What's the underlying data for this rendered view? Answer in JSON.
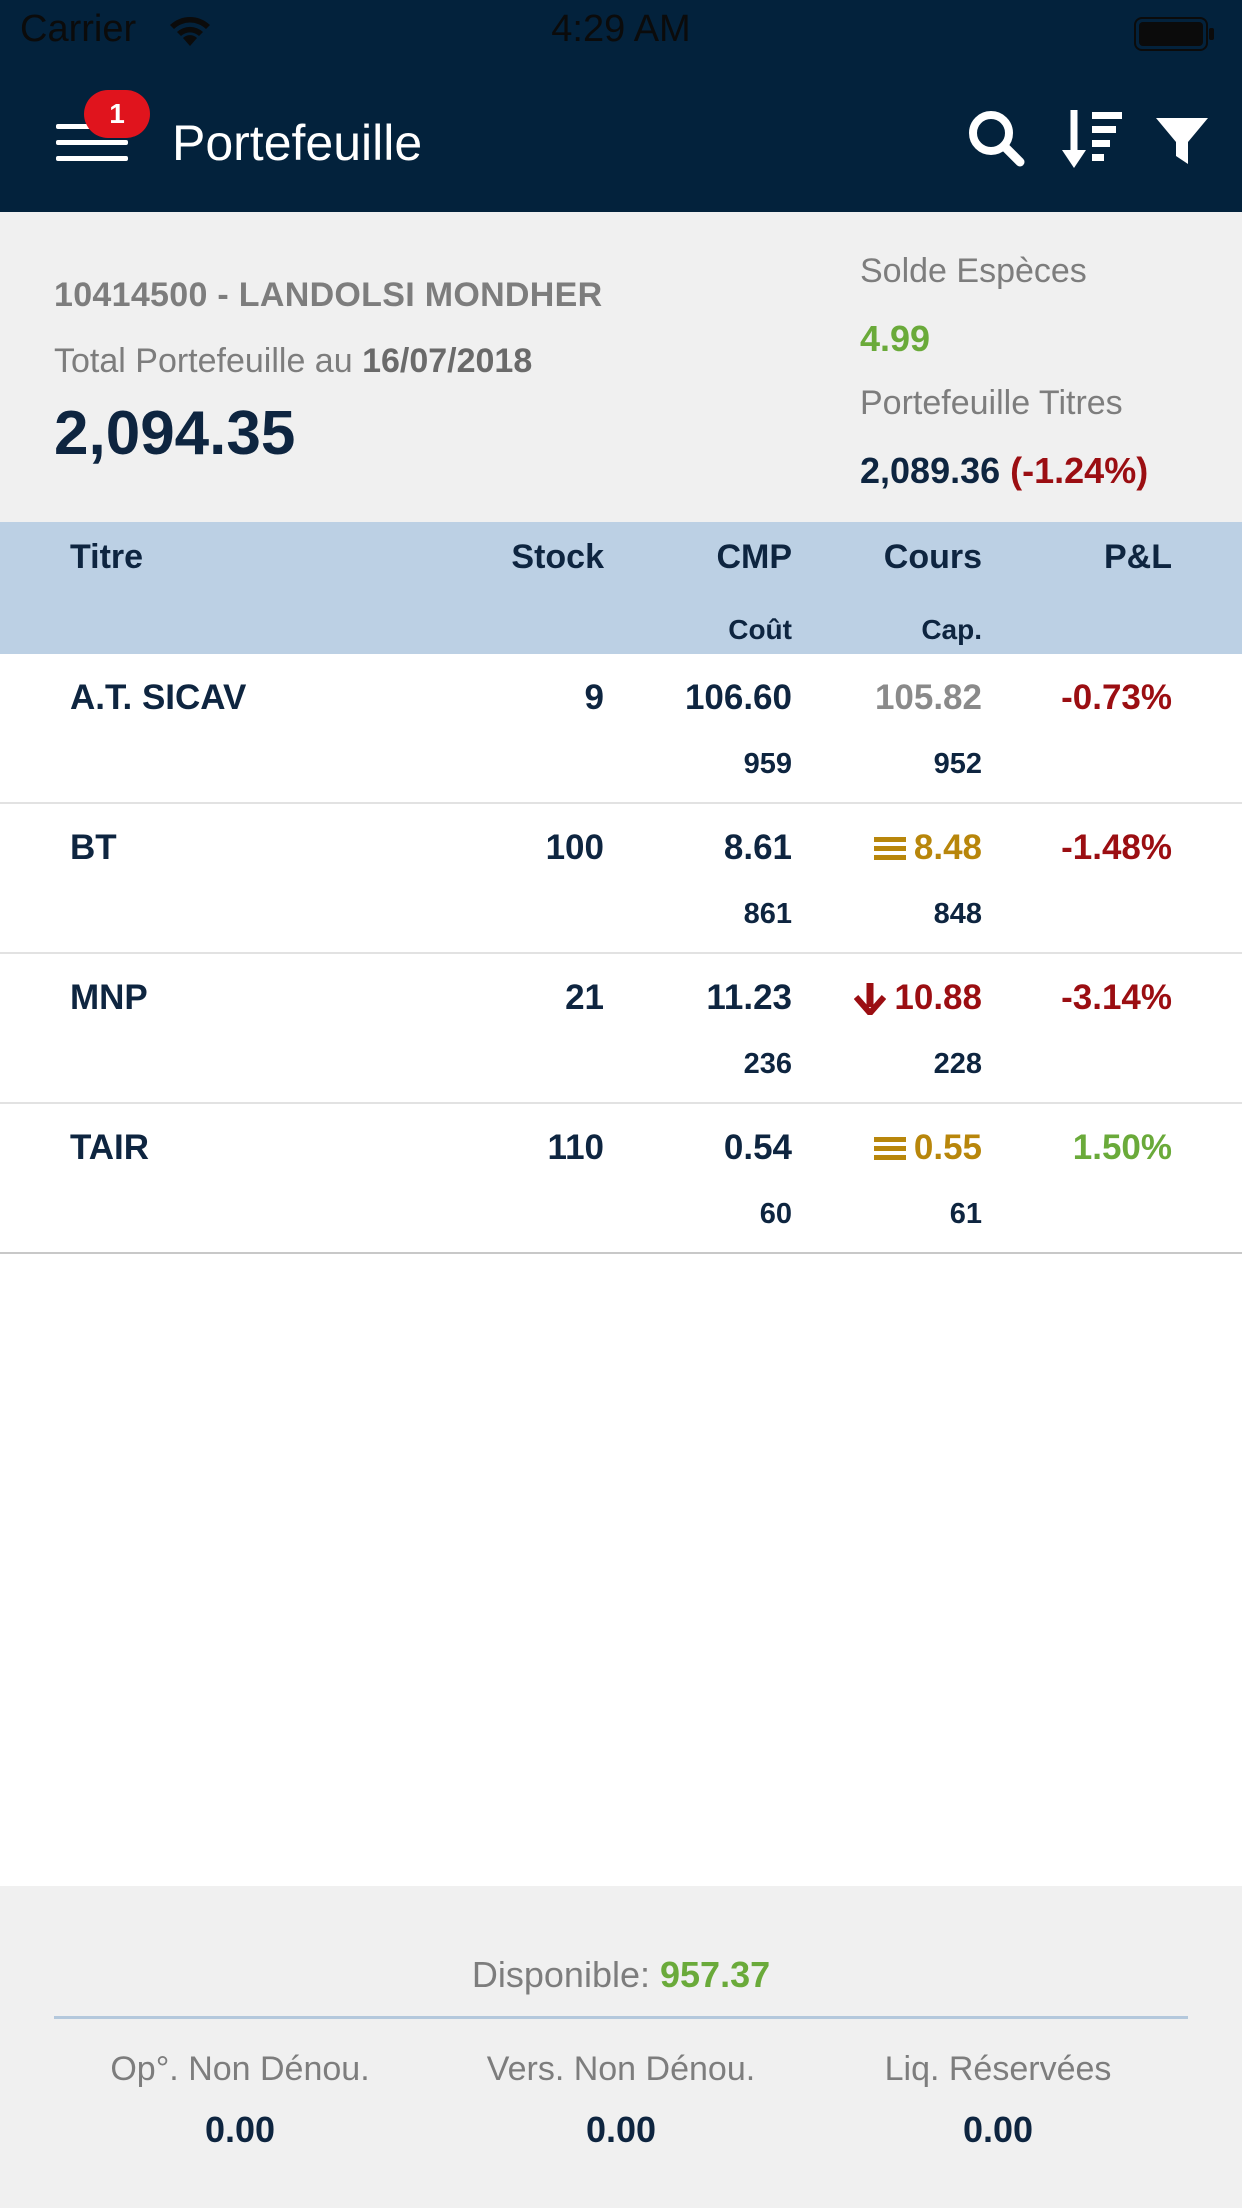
{
  "status_bar": {
    "carrier": "Carrier",
    "time": "4:29 AM"
  },
  "nav": {
    "title": "Portefeuille",
    "badge_count": "1",
    "icons": [
      "menu-icon",
      "search-icon",
      "sort-icon",
      "filter-icon"
    ]
  },
  "summary": {
    "account": "10414500 - LANDOLSI MONDHER",
    "total_label": "Total Portefeuille au ",
    "total_date": "16/07/2018",
    "total_value": "2,094.35",
    "solde_label": "Solde Espèces",
    "solde_value": "4.99",
    "titres_label": "Portefeuille Titres",
    "titres_value": "2,089.36",
    "titres_pct": "(-1.24%)"
  },
  "table": {
    "headers": {
      "titre": "Titre",
      "stock": "Stock",
      "cmp": "CMP",
      "cmp_sub": "Coût",
      "cours": "Cours",
      "cours_sub": "Cap.",
      "pl": "P&L"
    },
    "rows": [
      {
        "titre": "A.T. SICAV",
        "stock": "9",
        "cmp": "106.60",
        "cout": "959",
        "cours": "105.82",
        "cap": "952",
        "pl": "-0.73%",
        "trend": "none"
      },
      {
        "titre": "BT",
        "stock": "100",
        "cmp": "8.61",
        "cout": "861",
        "cours": "8.48",
        "cap": "848",
        "pl": "-1.48%",
        "trend": "flat"
      },
      {
        "titre": "MNP",
        "stock": "21",
        "cmp": "11.23",
        "cout": "236",
        "cours": "10.88",
        "cap": "228",
        "pl": "-3.14%",
        "trend": "down"
      },
      {
        "titre": "TAIR",
        "stock": "110",
        "cmp": "0.54",
        "cout": "60",
        "cours": "0.55",
        "cap": "61",
        "pl": "1.50%",
        "trend": "flat"
      }
    ]
  },
  "footer": {
    "disponible_label": "Disponible: ",
    "disponible_value": "957.37",
    "op_label": "Op°. Non Dénou.",
    "op_value": "0.00",
    "vers_label": "Vers. Non Dénou.",
    "vers_value": "0.00",
    "liq_label": "Liq. Réservées",
    "liq_value": "0.00"
  },
  "colors": {
    "nav_bg": "#03223c",
    "header_bg": "#bcd0e4",
    "positive": "#6aaa3a",
    "negative": "#9b0e12",
    "flat": "#b8860b",
    "badge": "#e0141d"
  }
}
